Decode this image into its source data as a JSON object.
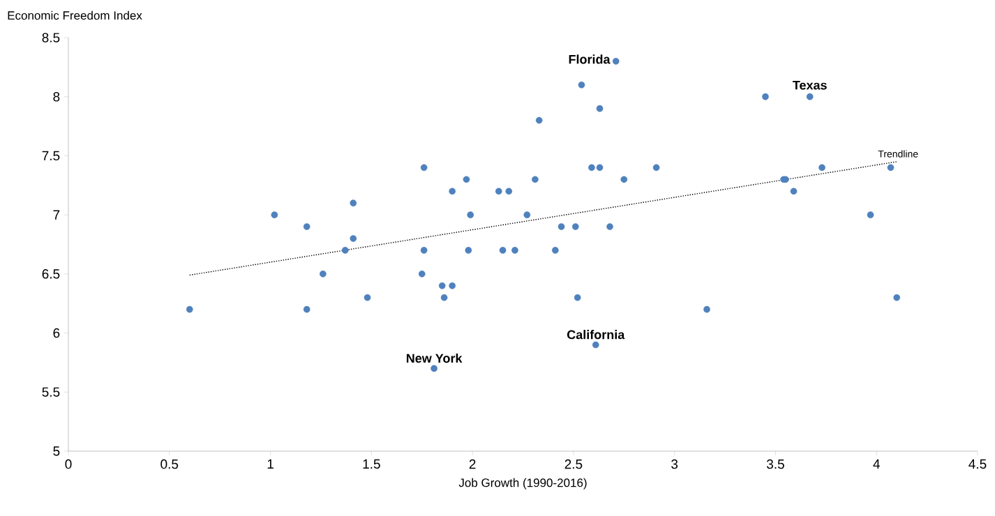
{
  "chart_data": {
    "type": "scatter",
    "xlabel": "Job Growth (1990-2016)",
    "ylabel": "Economic Freedom Index",
    "xlim": [
      0,
      4.5
    ],
    "ylim": [
      5,
      8.5
    ],
    "xticks": [
      0,
      0.5,
      1,
      1.5,
      2,
      2.5,
      3,
      3.5,
      4,
      4.5
    ],
    "yticks": [
      5,
      5.5,
      6,
      6.5,
      7,
      7.5,
      8,
      8.5
    ],
    "series": [
      {
        "type": "scatter",
        "color": "#4f81bd",
        "marker": "circle",
        "x": [
          0.6,
          1.02,
          1.18,
          1.18,
          1.26,
          1.41,
          1.41,
          1.37,
          1.48,
          1.76,
          1.76,
          1.75,
          1.85,
          1.9,
          1.86,
          1.9,
          1.81,
          1.97,
          1.99,
          1.98,
          2.13,
          2.18,
          2.15,
          2.21,
          2.27,
          2.31,
          2.33,
          2.41,
          2.44,
          2.51,
          2.52,
          2.54,
          2.59,
          2.63,
          2.63,
          2.61,
          2.68,
          2.71,
          2.75,
          2.91,
          3.16,
          3.45,
          3.54,
          3.55,
          3.59,
          3.67,
          3.73,
          3.97,
          4.07,
          4.1
        ],
        "values": [
          6.2,
          7.0,
          6.9,
          6.2,
          6.5,
          7.1,
          6.8,
          6.7,
          6.3,
          7.4,
          6.7,
          6.5,
          6.4,
          6.4,
          6.3,
          7.2,
          5.7,
          7.3,
          7.0,
          6.7,
          7.2,
          7.2,
          6.7,
          6.7,
          7.0,
          7.3,
          7.8,
          6.7,
          6.9,
          6.9,
          6.3,
          8.1,
          7.4,
          7.4,
          7.9,
          5.9,
          6.9,
          8.3,
          7.3,
          7.4,
          6.2,
          8.0,
          7.3,
          7.3,
          7.2,
          8.0,
          7.4,
          7.0,
          7.4,
          6.3
        ]
      },
      {
        "type": "line",
        "color": "#000000",
        "marker": "none",
        "line_style": "dotted",
        "x": [
          0.6,
          4.1
        ],
        "values": [
          6.49,
          7.45
        ]
      }
    ],
    "annotations": [
      {
        "text": "Florida",
        "x": 2.71,
        "y": 8.3
      },
      {
        "text": "Texas",
        "x": 3.67,
        "y": 8.0
      },
      {
        "text": "California",
        "x": 2.61,
        "y": 5.9
      },
      {
        "text": "New York",
        "x": 1.81,
        "y": 5.7
      },
      {
        "text": "Trendline",
        "x": 4.1,
        "y": 7.45
      }
    ]
  }
}
